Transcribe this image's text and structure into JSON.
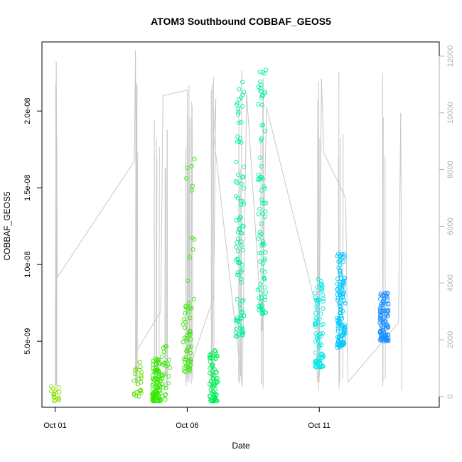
{
  "chart_data": {
    "type": "scatter",
    "title": "ATOM3 Southbound COBBAF_GEOS5",
    "xlabel": "Date",
    "ylabel": "COBBAF_GEOS5",
    "x_axis": {
      "type": "date",
      "range": [
        "2016-09-30T12:00",
        "2016-10-15T13:00"
      ],
      "ticks": [
        {
          "value": "2016-10-01",
          "label": "Oct 01"
        },
        {
          "value": "2016-10-06",
          "label": "Oct 06"
        },
        {
          "value": "2016-10-11",
          "label": "Oct 11"
        }
      ]
    },
    "y_axis": {
      "range": [
        7e-10,
        2.45e-08
      ],
      "ticks": [
        {
          "value": 5e-09,
          "label": "5.0e-09"
        },
        {
          "value": 1e-08,
          "label": "1.0e-08"
        },
        {
          "value": 1.5e-08,
          "label": "1.5e-08"
        },
        {
          "value": 2e-08,
          "label": "2.0e-08"
        }
      ]
    },
    "y2_axis": {
      "range": [
        -380,
        12500
      ],
      "ticks": [
        0,
        2000,
        4000,
        6000,
        8000,
        10000,
        12000
      ]
    },
    "grid": false,
    "colors": {
      "altitude_line": "#c8c8c8",
      "right_axis": "#b0b0b0",
      "point_colors": [
        "#8fe000",
        "#5be000",
        "#33e800",
        "#00ee55",
        "#00f0a0",
        "#00e8e8",
        "#00c8ff",
        "#1e90ff"
      ]
    },
    "series": [
      {
        "x": "2016-10-01T00:00",
        "y_min": 1.1e-09,
        "y_max": 2.1e-09,
        "n": 18,
        "color_index": 0
      },
      {
        "x": "2016-10-04T03:00",
        "y_min": 1.4e-09,
        "y_max": 4e-09,
        "n": 22,
        "color_index": 1
      },
      {
        "x": "2016-10-04T20:00",
        "y_min": 1.1e-09,
        "y_max": 3.9e-09,
        "n": 90,
        "color_index": 2
      },
      {
        "x": "2016-10-05T05:00",
        "y_min": 1.2e-09,
        "y_max": 4.9e-09,
        "n": 25,
        "color_index": 2
      },
      {
        "x": "2016-10-06T00:00",
        "y_min": 3e-09,
        "y_max": 8e-09,
        "n": 45,
        "color_index": 2
      },
      {
        "x": "2016-10-06T03:00",
        "y_min": 4.5e-09,
        "y_max": 1.71e-08,
        "n": 14,
        "color_index": 2
      },
      {
        "x": "2016-10-07T00:00",
        "y_min": 1.1e-09,
        "y_max": 4.5e-09,
        "n": 70,
        "color_index": 3
      },
      {
        "x": "2016-10-08T00:00",
        "y_min": 5.3e-09,
        "y_max": 2.2e-08,
        "n": 100,
        "color_index": 4
      },
      {
        "x": "2016-10-08T20:00",
        "y_min": 6.8e-09,
        "y_max": 2.35e-08,
        "n": 90,
        "color_index": 4
      },
      {
        "x": "2016-10-11T00:00",
        "y_min": 3.3e-09,
        "y_max": 9.2e-09,
        "n": 85,
        "color_index": 5
      },
      {
        "x": "2016-10-11T20:00",
        "y_min": 4.6e-09,
        "y_max": 1.07e-08,
        "n": 120,
        "color_index": 6
      },
      {
        "x": "2016-10-13T11:00",
        "y_min": 5e-09,
        "y_max": 8.3e-09,
        "n": 110,
        "color_index": 7
      }
    ],
    "altitude_profile": [
      {
        "x": "2016-10-01T00:00",
        "alt": 250
      },
      {
        "x": "2016-10-01T01:00",
        "alt": 11800
      },
      {
        "x": "2016-10-01T02:00",
        "alt": 4200
      },
      {
        "x": "2016-10-04T00:00",
        "alt": 8300
      },
      {
        "x": "2016-10-04T01:00",
        "alt": 12200
      },
      {
        "x": "2016-10-04T02:00",
        "alt": 1600
      },
      {
        "x": "2016-10-05T00:00",
        "alt": 3000
      },
      {
        "x": "2016-10-05T02:00",
        "alt": 10600
      },
      {
        "x": "2016-10-06T00:00",
        "alt": 10800
      },
      {
        "x": "2016-10-06T02:00",
        "alt": 1000
      },
      {
        "x": "2016-10-07T00:00",
        "alt": 3500
      },
      {
        "x": "2016-10-07T02:00",
        "alt": 10500
      },
      {
        "x": "2016-10-07T00:00",
        "alt": 9200
      },
      {
        "x": "2016-10-08T02:00",
        "alt": 350
      },
      {
        "x": "2016-10-08T06:00",
        "alt": 10700
      },
      {
        "x": "2016-10-08T20:00",
        "alt": 2300
      },
      {
        "x": "2016-10-09T00:00",
        "alt": 10200
      },
      {
        "x": "2016-10-11T00:00",
        "alt": 2700
      },
      {
        "x": "2016-10-11T02:00",
        "alt": 11200
      },
      {
        "x": "2016-10-11T04:00",
        "alt": 8600
      },
      {
        "x": "2016-10-12T00:00",
        "alt": 7000
      },
      {
        "x": "2016-10-12T02:00",
        "alt": 500
      },
      {
        "x": "2016-10-14T00:00",
        "alt": 2600
      },
      {
        "x": "2016-10-14T02:00",
        "alt": 10000
      },
      {
        "x": "2016-10-14T03:00",
        "alt": 200
      }
    ]
  }
}
